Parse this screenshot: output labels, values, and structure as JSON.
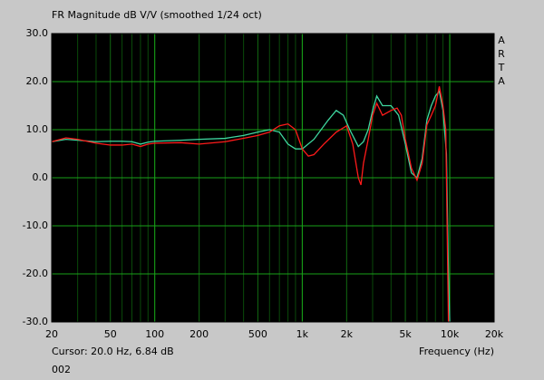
{
  "chart_data": {
    "type": "line",
    "title": "FR Magnitude dB V/V (smoothed 1/24 oct)",
    "side_label": [
      "A",
      "R",
      "T",
      "A"
    ],
    "cursor_text": "Cursor: 20.0 Hz, 6.84 dB",
    "footer": "002",
    "x_label": "Frequency (Hz)",
    "xscale": "log",
    "grid": true,
    "xlim": [
      20,
      20000
    ],
    "ylim": [
      -30,
      30
    ],
    "xticks": [
      20,
      50,
      100,
      200,
      500,
      {
        "value": 1000,
        "label": "1k"
      },
      {
        "value": 2000,
        "label": "2k"
      },
      {
        "value": 5000,
        "label": "5k"
      },
      {
        "value": 10000,
        "label": "10k"
      },
      {
        "value": 20000,
        "label": "20k"
      }
    ],
    "xminorticks": [
      30,
      40,
      60,
      70,
      80,
      90,
      300,
      400,
      600,
      700,
      800,
      900,
      3000,
      4000,
      6000,
      7000,
      8000,
      9000
    ],
    "yticks": [
      {
        "value": 30,
        "label": "30.0"
      },
      {
        "value": 20,
        "label": "20.0"
      },
      {
        "value": 10,
        "label": "10.0"
      },
      {
        "value": 0,
        "label": "0.0"
      },
      {
        "value": -10,
        "label": "-10.0"
      },
      {
        "value": -20,
        "label": "-20.0"
      },
      {
        "value": -30,
        "label": "-30.0"
      }
    ],
    "series": [
      {
        "color": "#3fd7a0",
        "x": [
          20,
          25,
          30,
          40,
          50,
          60,
          70,
          80,
          90,
          100,
          150,
          200,
          300,
          400,
          500,
          600,
          700,
          800,
          900,
          1000,
          1200,
          1500,
          1700,
          1900,
          2100,
          2400,
          2600,
          2800,
          3000,
          3200,
          3500,
          4000,
          4500,
          5000,
          5500,
          6000,
          6500,
          7000,
          7500,
          8000,
          8500,
          9000,
          9500,
          9800,
          10000
        ],
        "values": [
          7.5,
          8,
          7.8,
          7.5,
          7.6,
          7.6,
          7.5,
          7,
          7.4,
          7.6,
          7.8,
          8,
          8.2,
          8.8,
          9.5,
          10,
          9.5,
          7,
          6,
          6,
          8,
          12,
          14,
          13,
          10,
          6.5,
          7.5,
          10,
          14,
          17,
          15,
          15,
          13,
          7,
          1,
          0,
          4,
          12,
          15,
          17,
          18,
          14,
          5,
          -20,
          -30
        ]
      },
      {
        "color": "#ff1a1a",
        "x": [
          20,
          25,
          30,
          40,
          50,
          60,
          70,
          80,
          90,
          100,
          150,
          200,
          300,
          400,
          500,
          600,
          700,
          800,
          900,
          1000,
          1100,
          1200,
          1400,
          1700,
          2000,
          2200,
          2400,
          2500,
          2600,
          2800,
          3000,
          3200,
          3500,
          4000,
          4400,
          4700,
          5000,
          5500,
          6000,
          6500,
          7000,
          7500,
          8000,
          8500,
          9000,
          9400,
          9600,
          9800
        ],
        "values": [
          7.5,
          8.3,
          8,
          7.2,
          6.8,
          6.8,
          7,
          6.5,
          7,
          7.2,
          7.3,
          7,
          7.5,
          8.2,
          8.8,
          9.5,
          10.8,
          11.2,
          10,
          6,
          4.5,
          4.8,
          7,
          9.5,
          10.8,
          7,
          0,
          -1.5,
          3,
          8,
          13,
          15.5,
          13,
          14,
          14.5,
          13,
          8,
          2,
          -0.5,
          3,
          11,
          13,
          15,
          19,
          15,
          10,
          -10,
          -30
        ]
      }
    ]
  }
}
